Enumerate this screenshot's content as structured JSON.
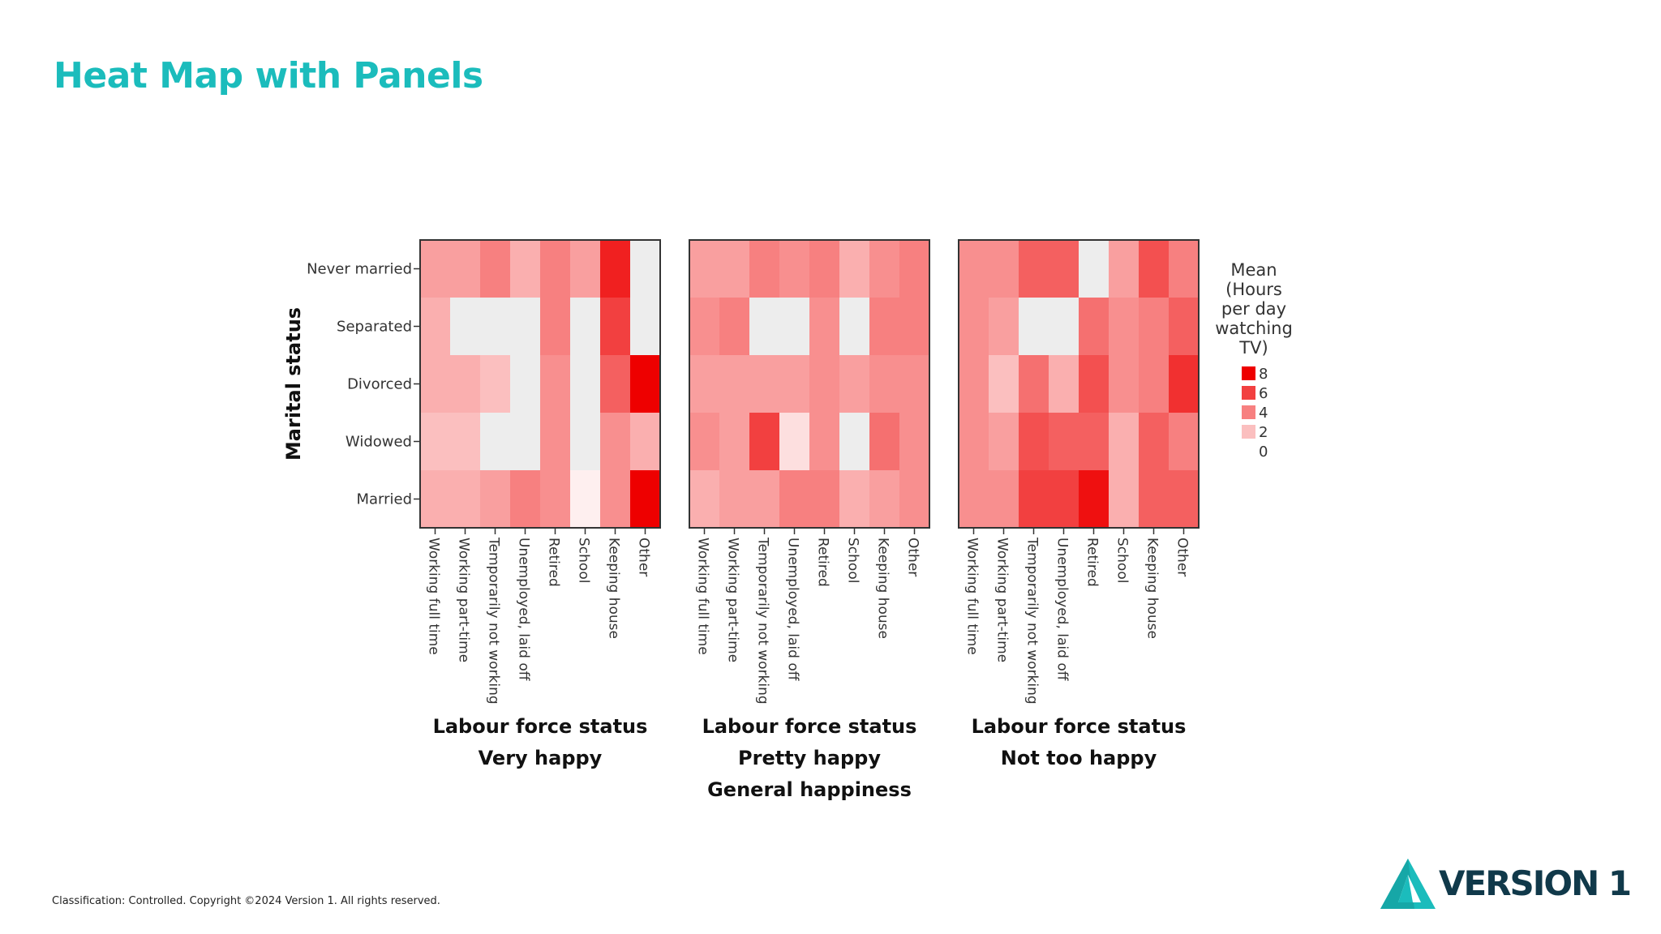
{
  "slide": {
    "title": "Heat Map with Panels",
    "footer": "Classification: Controlled. Copyright ©2024 Version 1. All rights reserved.",
    "logo_text": "VERSION 1",
    "logo_icon": "triangle-logo-icon",
    "colors": {
      "title": "#1bbcbc",
      "logo_dark": "#10394a",
      "logo_teal": "#1bbcbc"
    }
  },
  "chart_data": {
    "type": "heatmap",
    "ylabel": "Marital status",
    "xlabel": "Labour force status",
    "panel_axis_label": "General happiness",
    "panels": [
      "Very happy",
      "Pretty happy",
      "Not too happy"
    ],
    "rows": [
      "Never married",
      "Separated",
      "Divorced",
      "Widowed",
      "Married"
    ],
    "columns": [
      "Working full time",
      "Working part-time",
      "Temporarily not working",
      "Unemployed, laid off",
      "Retired",
      "School",
      "Keeping house",
      "Other"
    ],
    "legend": {
      "title": [
        "Mean",
        "(Hours",
        "per day",
        "watching",
        "TV)"
      ],
      "ticks": [
        "8",
        "6",
        "4",
        "2",
        "0"
      ],
      "placement": "right"
    },
    "color_range": {
      "min": 0,
      "max": 8,
      "low": "#ffffff",
      "high": "#ee0000",
      "missing": "#ededed"
    },
    "values": [
      [
        [
          3.0,
          3.0,
          4.0,
          2.5,
          4.0,
          3.0,
          7.0,
          null
        ],
        [
          2.5,
          null,
          null,
          null,
          4.0,
          null,
          6.0,
          null
        ],
        [
          2.5,
          2.5,
          2.0,
          null,
          3.5,
          null,
          5.0,
          8.0
        ],
        [
          2.0,
          2.0,
          null,
          null,
          3.5,
          null,
          3.5,
          2.5
        ],
        [
          2.5,
          2.5,
          3.0,
          4.0,
          3.5,
          0.5,
          3.5,
          8.0
        ]
      ],
      [
        [
          3.0,
          3.0,
          4.0,
          3.5,
          4.0,
          2.5,
          3.5,
          4.0
        ],
        [
          3.5,
          4.0,
          null,
          null,
          3.5,
          null,
          4.0,
          4.0
        ],
        [
          3.0,
          3.0,
          3.0,
          3.0,
          3.5,
          3.0,
          3.5,
          3.5
        ],
        [
          3.5,
          3.0,
          6.0,
          1.0,
          3.5,
          null,
          4.5,
          3.5
        ],
        [
          2.5,
          3.0,
          3.0,
          4.0,
          4.0,
          2.5,
          3.0,
          3.5
        ]
      ],
      [
        [
          3.5,
          3.5,
          5.0,
          5.0,
          null,
          3.0,
          5.5,
          4.0
        ],
        [
          3.5,
          3.0,
          null,
          null,
          4.5,
          3.5,
          4.0,
          5.0
        ],
        [
          3.5,
          2.0,
          4.5,
          2.5,
          5.5,
          3.5,
          4.0,
          6.5
        ],
        [
          3.5,
          3.0,
          5.5,
          5.0,
          5.0,
          2.5,
          5.0,
          4.0
        ],
        [
          3.5,
          3.5,
          6.0,
          6.0,
          7.5,
          2.5,
          5.0,
          5.0
        ]
      ]
    ],
    "grid": false
  }
}
